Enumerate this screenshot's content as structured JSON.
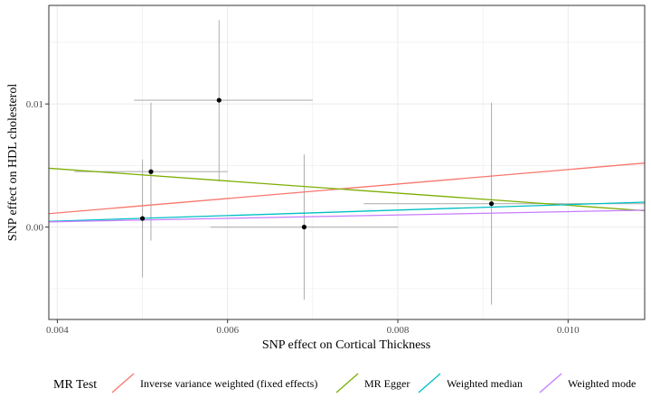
{
  "chart_data": {
    "type": "scatter",
    "title": "",
    "xlabel": "SNP effect on Cortical Thickness",
    "ylabel": "SNP effect on HDL cholesterol",
    "xlim": [
      0.0039,
      0.0109
    ],
    "ylim": [
      -0.0075,
      0.018
    ],
    "x_ticks": [
      0.004,
      0.006,
      0.008,
      0.01
    ],
    "x_tick_labels": [
      "0.004",
      "0.006",
      "0.008",
      "0.010"
    ],
    "y_ticks": [
      0.0,
      0.01
    ],
    "y_tick_labels": [
      "0.00",
      "0.01"
    ],
    "grid": true,
    "points": [
      {
        "x": 0.005,
        "y": 0.0007,
        "x_lo": 0.005,
        "x_hi": 0.005,
        "y_lo": -0.0041,
        "y_hi": 0.0055
      },
      {
        "x": 0.0051,
        "y": 0.0045,
        "x_lo": 0.0042,
        "x_hi": 0.006,
        "y_lo": -0.0011,
        "y_hi": 0.0101
      },
      {
        "x": 0.0059,
        "y": 0.0103,
        "x_lo": 0.0049,
        "x_hi": 0.007,
        "y_lo": 0.0037,
        "y_hi": 0.0168
      },
      {
        "x": 0.0069,
        "y": 0.0,
        "x_lo": 0.0058,
        "x_hi": 0.008,
        "y_lo": -0.0059,
        "y_hi": 0.0059
      },
      {
        "x": 0.0091,
        "y": 0.0019,
        "x_lo": 0.0076,
        "x_hi": 0.0109,
        "y_lo": -0.0063,
        "y_hi": 0.0101
      }
    ],
    "legend": {
      "title": "MR Test",
      "position": "bottom",
      "items": [
        {
          "label": "Inverse variance weighted (fixed effects)",
          "color": "#F8766D",
          "intercept": -0.0012,
          "slope": 0.5871
        },
        {
          "label": "MR Egger",
          "color": "#7CAE00",
          "intercept": 0.0067,
          "slope": -0.4928
        },
        {
          "label": "Weighted median",
          "color": "#00BFC4",
          "intercept": -0.0004,
          "slope": 0.2227
        },
        {
          "label": "Weighted mode",
          "color": "#C77CFF",
          "intercept": -0.0001,
          "slope": 0.1355
        }
      ]
    },
    "colors": {
      "background": "#ffffff",
      "grid": "#ebebeb",
      "errorbar": "#b3b3b3",
      "point": "#000000",
      "panel_border": "#333333"
    }
  }
}
